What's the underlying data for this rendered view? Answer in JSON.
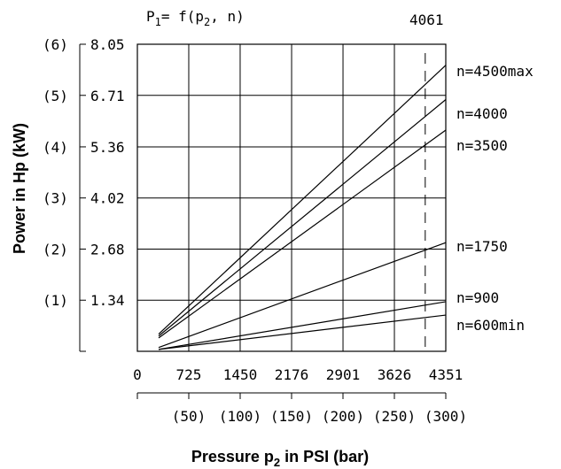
{
  "chart_data": {
    "type": "line",
    "title_parts": {
      "main": "P",
      "sub1": "1",
      "mid": "= f(p",
      "sub2": "2",
      "end": ", n)"
    },
    "max_pressure_label": "4061",
    "max_pressure_psi": 4061,
    "xlabel_parts": {
      "main": "Pressure p",
      "sub": "2",
      "end": " in PSI (bar)"
    },
    "ylabel": "Power in Hp (kW)",
    "x_psi_ticks": [
      "0",
      "725",
      "1450",
      "2176",
      "2901",
      "3626",
      "4351"
    ],
    "x_psi_values": [
      0,
      725,
      1450,
      2176,
      2901,
      3626,
      4351
    ],
    "x_bar_ticks": [
      "(50)",
      "(100)",
      "(150)",
      "(200)",
      "(250)",
      "(300)"
    ],
    "x_bar_values": [
      50,
      100,
      150,
      200,
      250,
      300
    ],
    "y_hp_ticks": [
      "1.34",
      "2.68",
      "4.02",
      "5.36",
      "6.71",
      "8.05"
    ],
    "y_hp_values": [
      1.34,
      2.68,
      4.02,
      5.36,
      6.71,
      8.05
    ],
    "y_kw_ticks": [
      "(1)",
      "(2)",
      "(3)",
      "(4)",
      "(5)",
      "(6)"
    ],
    "y_kw_values": [
      1,
      2,
      3,
      4,
      5,
      6
    ],
    "xlim": [
      0,
      4351
    ],
    "ylim": [
      0,
      8.05
    ],
    "grid": true,
    "series": [
      {
        "name": "n=4500max",
        "x": [
          300,
          4351
        ],
        "y": [
          0.45,
          7.5
        ]
      },
      {
        "name": "n=4000",
        "x": [
          300,
          4351
        ],
        "y": [
          0.4,
          6.6
        ]
      },
      {
        "name": "n=3500",
        "x": [
          300,
          4351
        ],
        "y": [
          0.35,
          5.8
        ]
      },
      {
        "name": "n=1750",
        "x": [
          300,
          4351
        ],
        "y": [
          0.1,
          2.85
        ]
      },
      {
        "name": "n=900",
        "x": [
          300,
          4351
        ],
        "y": [
          0.05,
          1.3
        ]
      },
      {
        "name": "n=600min",
        "x": [
          300,
          4351
        ],
        "y": [
          0.05,
          0.95
        ]
      }
    ]
  }
}
